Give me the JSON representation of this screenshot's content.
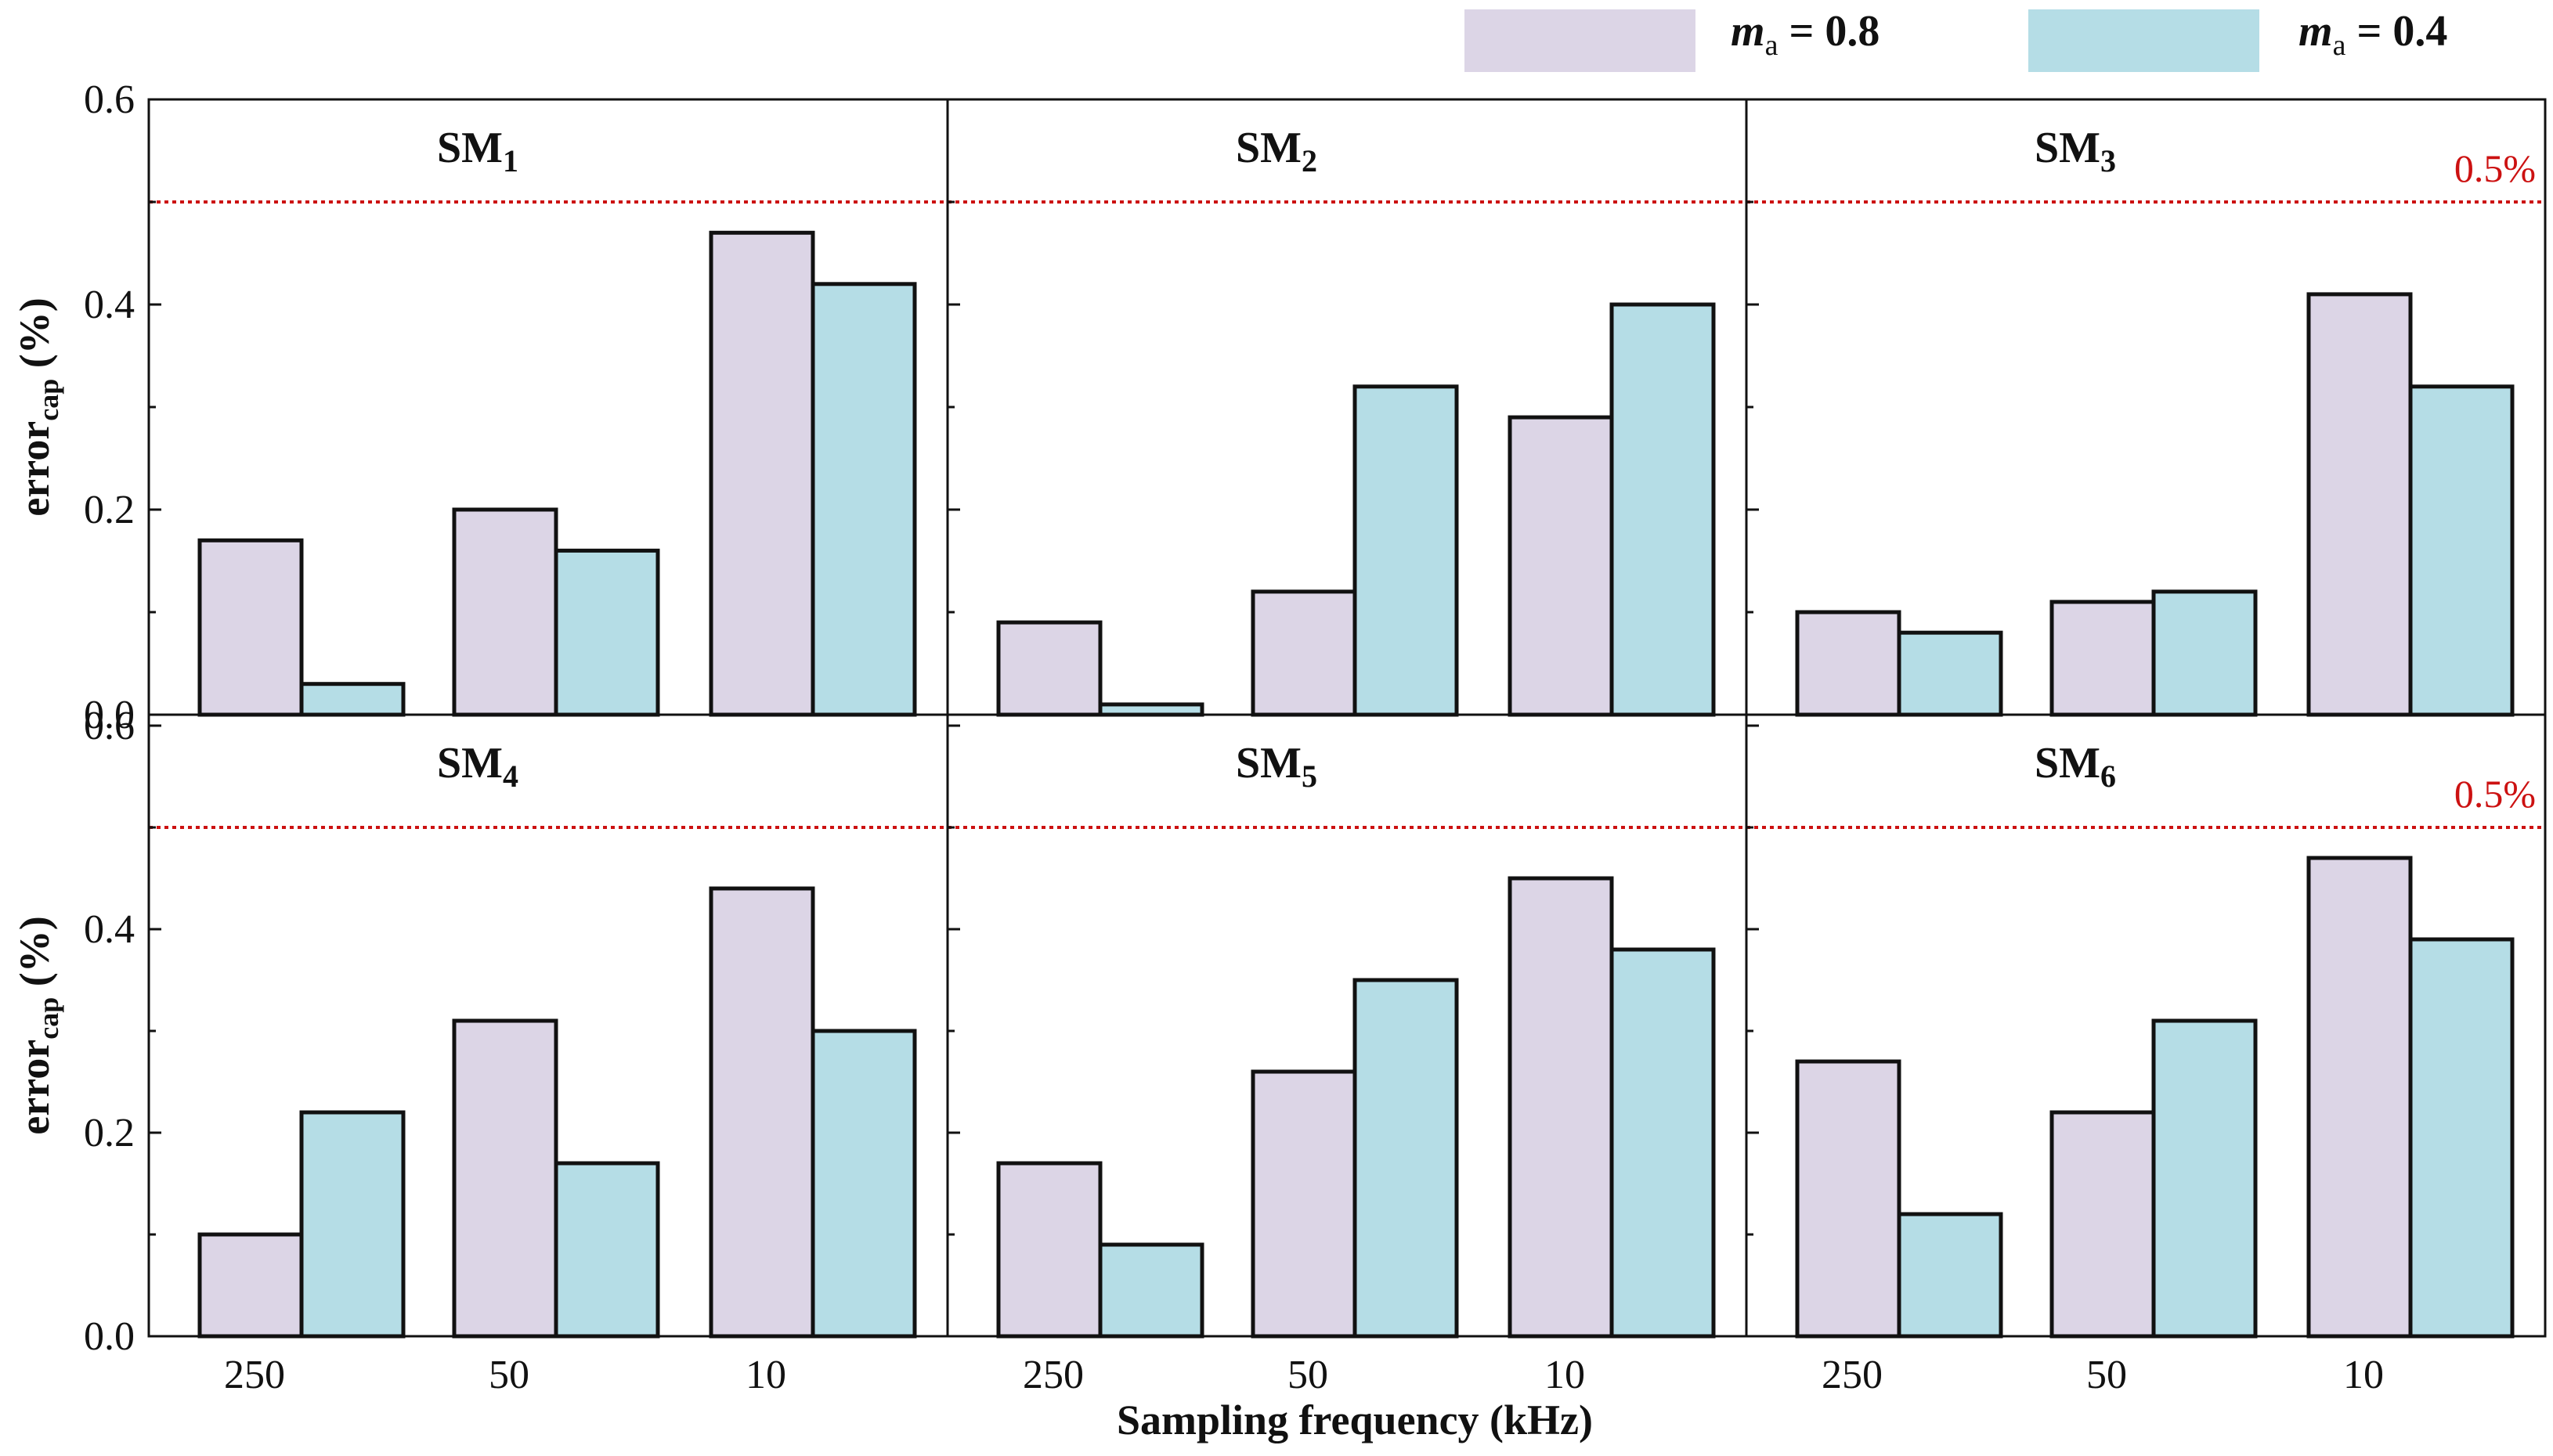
{
  "colors": {
    "series_a": "#dcd5e6",
    "series_b": "#b5dde6",
    "threshold": "#cc1111",
    "stroke": "#111111"
  },
  "legend": [
    {
      "var": "m",
      "sub": "a",
      "rest": " = 0.8"
    },
    {
      "var": "m",
      "sub": "a",
      "rest": " = 0.4"
    }
  ],
  "axes": {
    "xlabel": "Sampling frequency (kHz)",
    "ylabel_main": "error",
    "ylabel_sub": "cap",
    "ylabel_unit": " (%)"
  },
  "chart_data": {
    "type": "bar",
    "layout": "2x3 grid of panels",
    "categories": [
      "250",
      "50",
      "10"
    ],
    "ylim": [
      0,
      0.6
    ],
    "yticks": [
      "0.0",
      "0.2",
      "0.4",
      "0.6"
    ],
    "threshold": {
      "value": 0.5,
      "label": "0.5%"
    },
    "series_names": [
      "m_a = 0.8",
      "m_a = 0.4"
    ],
    "panels": [
      {
        "title_main": "SM",
        "title_sub": "1",
        "series": [
          {
            "values": [
              0.17,
              0.2,
              0.47
            ]
          },
          {
            "values": [
              0.03,
              0.16,
              0.42
            ]
          }
        ]
      },
      {
        "title_main": "SM",
        "title_sub": "2",
        "series": [
          {
            "values": [
              0.09,
              0.12,
              0.29
            ]
          },
          {
            "values": [
              0.01,
              0.32,
              0.4
            ]
          }
        ]
      },
      {
        "title_main": "SM",
        "title_sub": "3",
        "series": [
          {
            "values": [
              0.1,
              0.11,
              0.41
            ]
          },
          {
            "values": [
              0.08,
              0.12,
              0.32
            ]
          }
        ]
      },
      {
        "title_main": "SM",
        "title_sub": "4",
        "series": [
          {
            "values": [
              0.1,
              0.31,
              0.44
            ]
          },
          {
            "values": [
              0.22,
              0.17,
              0.3
            ]
          }
        ]
      },
      {
        "title_main": "SM",
        "title_sub": "5",
        "series": [
          {
            "values": [
              0.17,
              0.26,
              0.45
            ]
          },
          {
            "values": [
              0.09,
              0.35,
              0.38
            ]
          }
        ]
      },
      {
        "title_main": "SM",
        "title_sub": "6",
        "series": [
          {
            "values": [
              0.27,
              0.22,
              0.47
            ]
          },
          {
            "values": [
              0.12,
              0.31,
              0.39
            ]
          }
        ]
      }
    ]
  }
}
